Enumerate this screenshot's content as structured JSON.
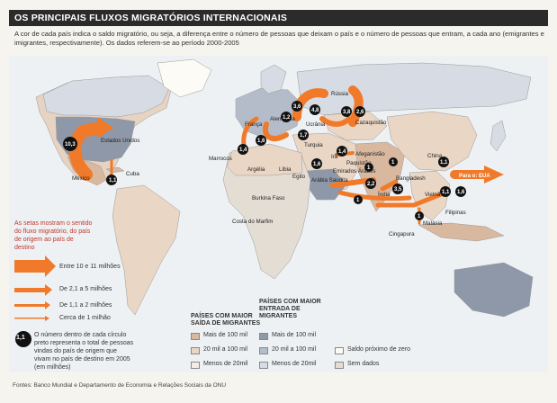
{
  "title": "OS PRINCIPAIS FLUXOS MIGRATÓRIOS INTERNACIONAIS",
  "intro": "A cor de cada país indica o saldo migratório, ou seja, a diferença entre o número de pessoas que deixam o país e o número de pessoas que entram, a cada ano (emigrantes e imigrantes, respectivamente). Os dados referem-se ao período 2000-2005",
  "arrows_legend": {
    "explain": "As setas mostram o sentido do fluxo migratório, do país de origem ao país de destino",
    "items": [
      "Entre 10 e 11 milhões",
      "De 2,1 a 5 milhões",
      "De 1,1 a 2 milhões",
      "Cerca de 1 milhão"
    ]
  },
  "circle_legend": {
    "sample": "1,1",
    "text": "O número dentro de cada círculo preto representa o total de pessoas vindas do país de origem que vivam no país de destino em 2005 (em milhões)"
  },
  "emigration_box": {
    "title": "PAÍSES COM MAIOR SAÍDA DE MIGRANTES",
    "items": [
      "Mais de 100 mil",
      "20 mil a 100 mil",
      "Menos de 20mil"
    ],
    "colors": [
      "#d9b8a0",
      "#ead6c4",
      "#f6ece2"
    ]
  },
  "immigration_box": {
    "title": "PAÍSES COM MAIOR ENTRADA DE MIGRANTES",
    "items": [
      "Mais de 100 mil",
      "20 mil a 100 mil",
      "Menos de 20mil"
    ],
    "colors": [
      "#8e98a8",
      "#b4bcca",
      "#d6dbe4"
    ]
  },
  "other_legend": {
    "items": [
      "Saldo próximo de zero",
      "Sem dados"
    ],
    "colors": [
      "#fdfbf5",
      "#e4ddd4"
    ]
  },
  "countries": [
    "Estados Unidos",
    "México",
    "Cuba",
    "Marrocos",
    "Argélia",
    "Líbia",
    "Egito",
    "Burkina Faso",
    "Costa do Marfim",
    "França",
    "Alemanha",
    "Ucrânia",
    "Rússia",
    "Cazaquistão",
    "Turquia",
    "Irã",
    "Afeganistão",
    "Paquistão",
    "Emirados Árabes",
    "Arábia Saudita",
    "Índia",
    "Bangladesh",
    "China",
    "Vietnã",
    "Filipinas",
    "Malásia",
    "Cingapura"
  ],
  "circle_values": [
    "10,3",
    "1,1",
    "1,4",
    "1,6",
    "1,2",
    "3,6",
    "4,8",
    "3,8",
    "2,6",
    "1,7",
    "1,6",
    "1,4",
    "2,2",
    "1",
    "1",
    "3,5",
    "1",
    "1,1",
    "1,1",
    "1,6",
    "1"
  ],
  "para_eua": "Para o: EUA",
  "footer": "Fontes: Banco Mundial e Departamento de Economia e Relações Sociais da ONU",
  "arrow_color": "#f07a2a"
}
